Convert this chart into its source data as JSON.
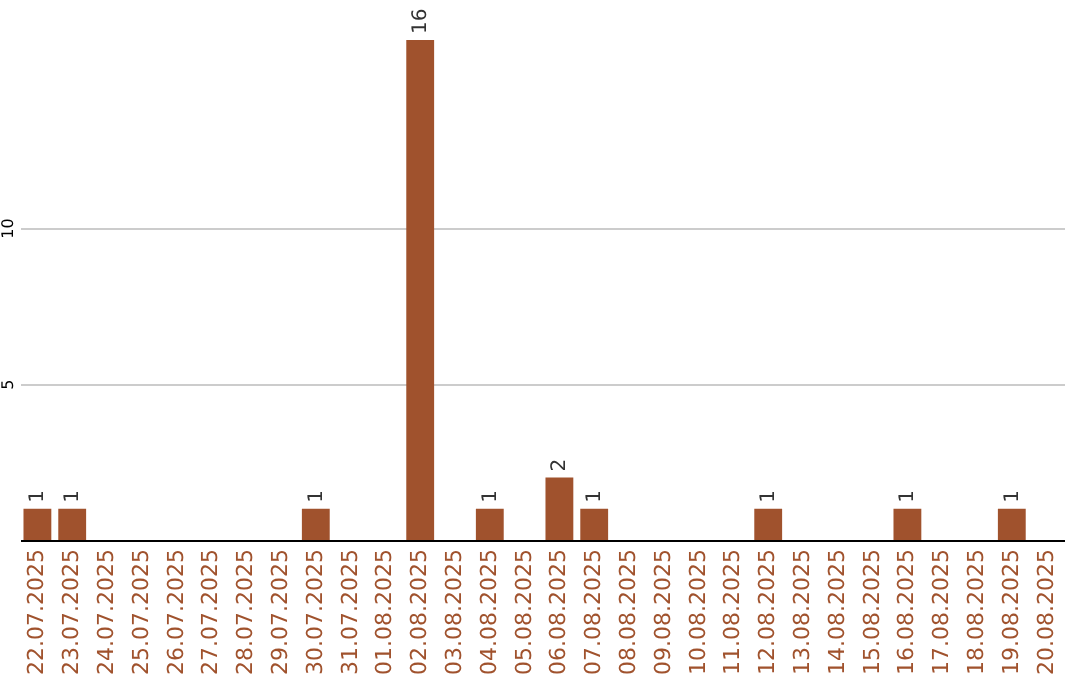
{
  "chart_data": {
    "type": "bar",
    "categories": [
      "22.07.2025",
      "23.07.2025",
      "24.07.2025",
      "25.07.2025",
      "26.07.2025",
      "27.07.2025",
      "28.07.2025",
      "29.07.2025",
      "30.07.2025",
      "31.07.2025",
      "01.08.2025",
      "02.08.2025",
      "03.08.2025",
      "04.08.2025",
      "05.08.2025",
      "06.08.2025",
      "07.08.2025",
      "08.08.2025",
      "09.08.2025",
      "10.08.2025",
      "11.08.2025",
      "12.08.2025",
      "13.08.2025",
      "14.08.2025",
      "15.08.2025",
      "16.08.2025",
      "17.08.2025",
      "18.08.2025",
      "19.08.2025",
      "20.08.2025"
    ],
    "values": [
      1,
      1,
      0,
      0,
      0,
      0,
      0,
      0,
      1,
      0,
      0,
      16,
      0,
      1,
      0,
      2,
      1,
      0,
      0,
      0,
      0,
      1,
      0,
      0,
      0,
      1,
      0,
      0,
      1,
      0
    ],
    "value_labels": [
      "1",
      "1",
      null,
      null,
      null,
      null,
      null,
      null,
      "1",
      null,
      null,
      "16",
      null,
      "1",
      null,
      "2",
      "1",
      null,
      null,
      null,
      null,
      "1",
      null,
      null,
      null,
      "1",
      null,
      null,
      "1",
      null
    ],
    "color": "#a0522d",
    "ylim": [
      0,
      16
    ],
    "yticks": [
      5,
      10
    ],
    "grid": "y"
  }
}
